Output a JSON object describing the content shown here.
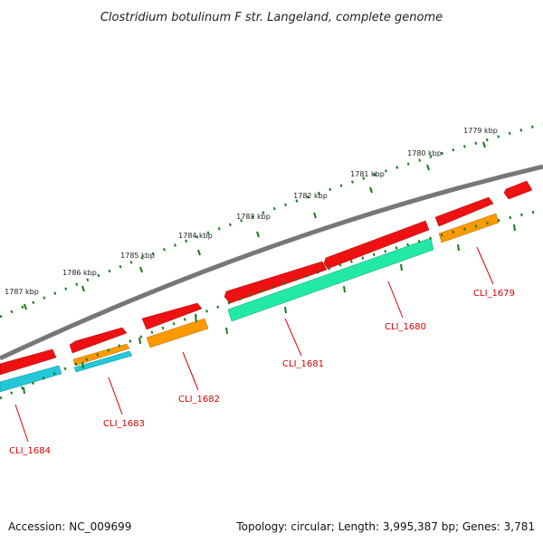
{
  "title": "Clostridium botulinum F str. Langeland, complete genome",
  "footer": {
    "accession": "Accession: NC_009699",
    "summary": "Topology: circular; Length: 3,995,387 bp; Genes: 3,781"
  },
  "colors": {
    "backbone": "#777777",
    "tick": "#1a7a1a",
    "cds_forward": "#ee1111",
    "orange": "#ff9900",
    "cyan": "#22c8d8",
    "mint": "#22e8a8",
    "label": "#dd0000"
  },
  "kbp_labels": [
    "1779 kbp",
    "1780 kbp",
    "1781 kbp",
    "1782 kbp",
    "1783 kbp",
    "1784 kbp",
    "1785 kbp",
    "1786 kbp",
    "1787 kbp"
  ],
  "genes": [
    {
      "name": "CLI_1679"
    },
    {
      "name": "CLI_1680"
    },
    {
      "name": "CLI_1681"
    },
    {
      "name": "CLI_1682"
    },
    {
      "name": "CLI_1683"
    },
    {
      "name": "CLI_1684"
    }
  ]
}
